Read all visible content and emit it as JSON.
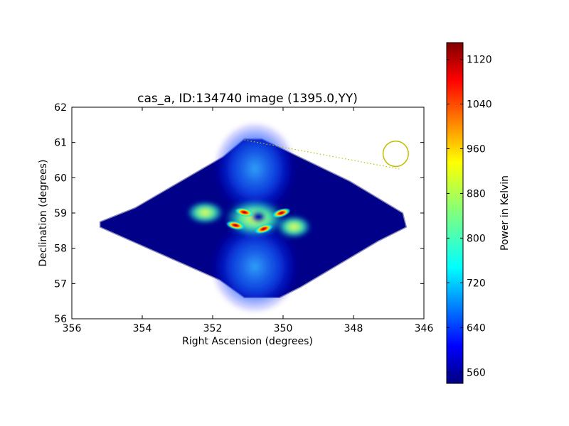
{
  "chart_data": {
    "type": "heatmap",
    "title": "cas_a, ID:134740 image (1395.0,YY)",
    "xlabel": "Right Ascension (degrees)",
    "ylabel": "Declination (degrees)",
    "xlim": [
      356,
      346
    ],
    "ylim": [
      56,
      62
    ],
    "x_ticks": [
      356,
      354,
      352,
      350,
      348,
      346
    ],
    "y_ticks": [
      56,
      57,
      58,
      59,
      60,
      61,
      62
    ],
    "colorbar": {
      "label": "Power in Kelvin",
      "range": [
        540,
        1150
      ],
      "ticks": [
        560,
        640,
        720,
        800,
        880,
        960,
        1040,
        1120
      ],
      "colormap": "jet"
    },
    "field_outline_radec": [
      [
        355.2,
        58.75
      ],
      [
        354.2,
        59.15
      ],
      [
        351.7,
        60.6
      ],
      [
        351.1,
        61.1
      ],
      [
        350.6,
        61.1
      ],
      [
        348.1,
        59.9
      ],
      [
        346.6,
        59.0
      ],
      [
        346.5,
        58.6
      ],
      [
        347.3,
        58.2
      ],
      [
        349.5,
        56.9
      ],
      [
        350.1,
        56.6
      ],
      [
        351.1,
        56.6
      ],
      [
        351.8,
        57.1
      ],
      [
        355.2,
        58.6
      ]
    ],
    "features": [
      {
        "type": "peak",
        "ra": 351.1,
        "dec": 59.02,
        "value": 1120
      },
      {
        "type": "peak",
        "ra": 350.55,
        "dec": 58.55,
        "value": 1120
      },
      {
        "type": "peak",
        "ra": 351.35,
        "dec": 58.65,
        "value": 1080
      },
      {
        "type": "peak",
        "ra": 350.05,
        "dec": 59.0,
        "value": 1060
      }
    ],
    "annotations": [
      {
        "type": "circle",
        "ra": 346.8,
        "dec": 60.68,
        "radius_deg": 0.36,
        "color": "#bfbf00"
      },
      {
        "type": "dotted-line",
        "from": [
          351.1,
          61.07
        ],
        "to": [
          346.7,
          60.25
        ],
        "color": "#bfbf00"
      }
    ]
  }
}
